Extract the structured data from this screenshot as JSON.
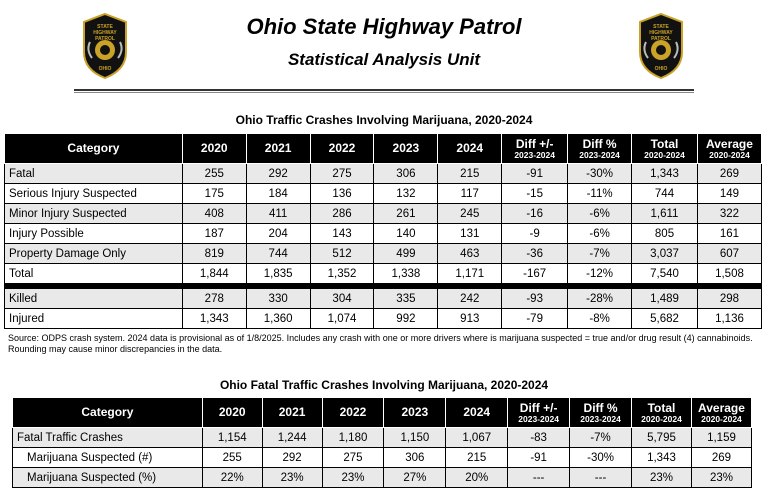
{
  "header": {
    "title": "Ohio State Highway Patrol",
    "subtitle": "Statistical Analysis Unit",
    "badge_text": [
      "STATE",
      "HIGHWAY",
      "PATROL",
      "OHIO"
    ]
  },
  "table1": {
    "title": "Ohio Traffic Crashes Involving Marijuana, 2020-2024",
    "headers": {
      "category": "Category",
      "years": [
        "2020",
        "2021",
        "2022",
        "2023",
        "2024"
      ],
      "diff": "Diff +/-",
      "diff_sub": "2023-2024",
      "diffpct": "Diff %",
      "diffpct_sub": "2023-2024",
      "total": "Total",
      "total_sub": "2020-2024",
      "avg": "Average",
      "avg_sub": "2020-2024"
    },
    "rows": [
      [
        "Fatal",
        "255",
        "292",
        "275",
        "306",
        "215",
        "-91",
        "-30%",
        "1,343",
        "269"
      ],
      [
        "Serious Injury Suspected",
        "175",
        "184",
        "136",
        "132",
        "117",
        "-15",
        "-11%",
        "744",
        "149"
      ],
      [
        "Minor Injury Suspected",
        "408",
        "411",
        "286",
        "261",
        "245",
        "-16",
        "-6%",
        "1,611",
        "322"
      ],
      [
        "Injury Possible",
        "187",
        "204",
        "143",
        "140",
        "131",
        "-9",
        "-6%",
        "805",
        "161"
      ],
      [
        "Property Damage Only",
        "819",
        "744",
        "512",
        "499",
        "463",
        "-36",
        "-7%",
        "3,037",
        "607"
      ],
      [
        "Total",
        "1,844",
        "1,835",
        "1,352",
        "1,338",
        "1,171",
        "-167",
        "-12%",
        "7,540",
        "1,508"
      ]
    ],
    "rows2": [
      [
        "Killed",
        "278",
        "330",
        "304",
        "335",
        "242",
        "-93",
        "-28%",
        "1,489",
        "298"
      ],
      [
        "Injured",
        "1,343",
        "1,360",
        "1,074",
        "992",
        "913",
        "-79",
        "-8%",
        "5,682",
        "1,136"
      ]
    ]
  },
  "source_note": "Source: ODPS crash system. 2024 data is provisional as of 1/8/2025. Includes any crash with one or more drivers where is marijuana suspected = true and/or drug result (4) cannabinoids. Rounding may cause minor discrepancies in the data.",
  "table2": {
    "title": "Ohio Fatal Traffic Crashes Involving Marijuana, 2020-2024",
    "rows": [
      [
        "Fatal Traffic Crashes",
        "1,154",
        "1,244",
        "1,180",
        "1,150",
        "1,067",
        "-83",
        "-7%",
        "5,795",
        "1,159"
      ],
      [
        "Marijuana Suspected (#)",
        "255",
        "292",
        "275",
        "306",
        "215",
        "-91",
        "-30%",
        "1,343",
        "269"
      ],
      [
        "Marijuana Suspected (%)",
        "22%",
        "23%",
        "23%",
        "27%",
        "20%",
        "---",
        "---",
        "23%",
        "23%"
      ]
    ]
  },
  "colors": {
    "header_bg": "#000000",
    "row_shade": "#e9e9e9",
    "badge_gold": "#c9a227"
  }
}
